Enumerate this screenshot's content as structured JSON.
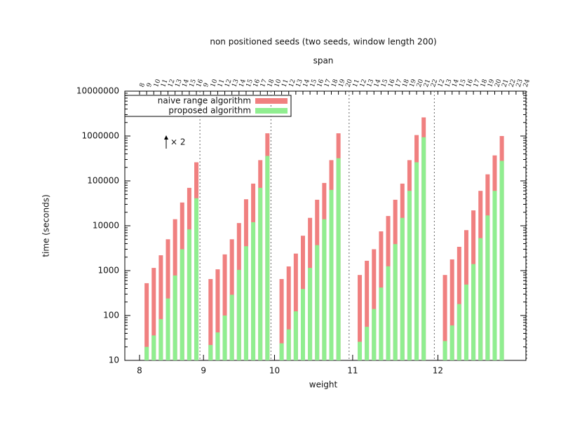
{
  "chart_data": {
    "type": "bar",
    "title": "non positioned seeds (two seeds, window length 200)",
    "top_axis_label": "span",
    "x_label": "weight",
    "y_label": "time (seconds)",
    "annotation": "× 2",
    "log_y": true,
    "ylim": [
      10,
      10000000
    ],
    "yticks": [
      10,
      100,
      1000,
      10000,
      100000,
      1000000,
      10000000
    ],
    "groups": [
      {
        "weight": "8",
        "spans": [
          "8",
          "9",
          "10",
          "11",
          "12",
          "13",
          "14",
          "15",
          "16"
        ]
      },
      {
        "weight": "9",
        "spans": [
          "9",
          "10",
          "11",
          "12",
          "13",
          "14",
          "15",
          "16",
          "17",
          "18"
        ]
      },
      {
        "weight": "10",
        "spans": [
          "10",
          "11",
          "12",
          "13",
          "14",
          "15",
          "16",
          "17",
          "18",
          "19",
          "20"
        ]
      },
      {
        "weight": "11",
        "spans": [
          "11",
          "12",
          "13",
          "14",
          "15",
          "16",
          "17",
          "18",
          "19",
          "20",
          "21",
          "22"
        ]
      },
      {
        "weight": "12",
        "spans": [
          "12",
          "13",
          "14",
          "15",
          "16",
          "17",
          "18",
          "19",
          "20",
          "21",
          "22",
          "23",
          "24"
        ]
      }
    ],
    "series": [
      {
        "name": "naive range algorithm",
        "color": "#f08080",
        "values": [
          [
            null,
            525,
            1150,
            2200,
            5000,
            14000,
            33000,
            70000,
            260000
          ],
          [
            null,
            650,
            1070,
            2300,
            5000,
            11500,
            39000,
            87000,
            290000,
            1150000
          ],
          [
            null,
            650,
            1240,
            2400,
            6000,
            15000,
            38000,
            90000,
            290000,
            1150000,
            null
          ],
          [
            null,
            800,
            1660,
            3000,
            7500,
            16500,
            38000,
            87000,
            290000,
            1050000,
            2600000,
            null
          ],
          [
            null,
            800,
            1780,
            3400,
            8000,
            22000,
            60000,
            140000,
            370000,
            1000000,
            null,
            null,
            null
          ]
        ]
      },
      {
        "name": "proposed algorithm",
        "color": "#90ee90",
        "values": [
          [
            null,
            20,
            36,
            83,
            240,
            780,
            3000,
            8300,
            41000
          ],
          [
            null,
            22,
            42,
            100,
            290,
            1040,
            3500,
            12000,
            70000,
            360000
          ],
          [
            null,
            24,
            49,
            124,
            390,
            1150,
            3700,
            14000,
            63000,
            320000,
            null
          ],
          [
            null,
            26,
            56,
            140,
            420,
            1250,
            3900,
            15000,
            60000,
            260000,
            940000,
            null
          ],
          [
            null,
            27,
            60,
            180,
            490,
            1400,
            5300,
            17000,
            60000,
            280000,
            null,
            null,
            null
          ]
        ]
      }
    ]
  }
}
